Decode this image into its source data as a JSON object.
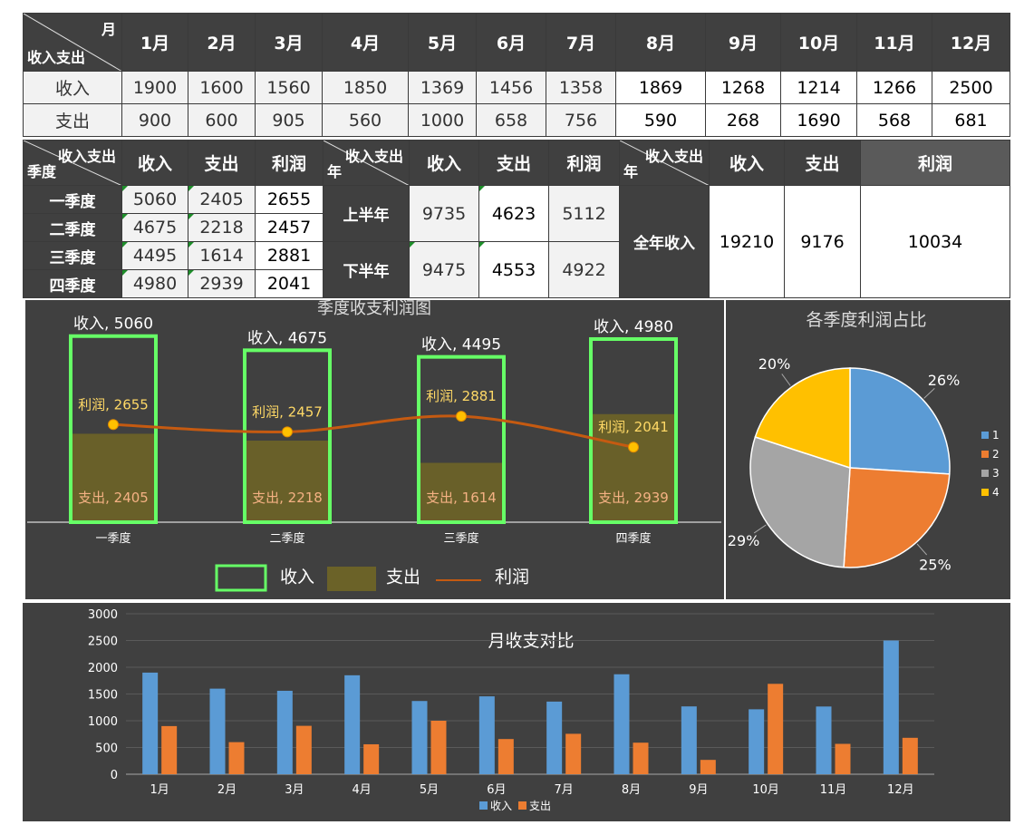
{
  "monthly_table": {
    "corner_top": "月",
    "corner_bottom": "收入支出",
    "months": [
      "1月",
      "2月",
      "3月",
      "4月",
      "5月",
      "6月",
      "7月",
      "8月",
      "9月",
      "10月",
      "11月",
      "12月"
    ],
    "rows": [
      {
        "label": "收入",
        "values": [
          "1900",
          "1600",
          "1560",
          "1850",
          "1369",
          "1456",
          "1358",
          "1869",
          "1268",
          "1214",
          "1266",
          "2500"
        ]
      },
      {
        "label": "支出",
        "values": [
          "900",
          "600",
          "905",
          "560",
          "1000",
          "658",
          "756",
          "590",
          "268",
          "1690",
          "568",
          "681"
        ]
      }
    ]
  },
  "quarter_table": {
    "corner_top": "收入支出",
    "corner_bottom": "季度",
    "headers": [
      "收入",
      "支出",
      "利润"
    ],
    "rows": [
      {
        "label": "一季度",
        "values": [
          "5060",
          "2405",
          "2655"
        ]
      },
      {
        "label": "二季度",
        "values": [
          "4675",
          "2218",
          "2457"
        ]
      },
      {
        "label": "三季度",
        "values": [
          "4495",
          "1614",
          "2881"
        ]
      },
      {
        "label": "四季度",
        "values": [
          "4980",
          "2939",
          "2041"
        ]
      }
    ]
  },
  "half_table": {
    "corner_top": "收入支出",
    "corner_bottom": "年",
    "headers": [
      "收入",
      "支出",
      "利润"
    ],
    "rows": [
      {
        "label": "上半年",
        "values": [
          "9735",
          "4623",
          "5112"
        ]
      },
      {
        "label": "下半年",
        "values": [
          "9475",
          "4553",
          "4922"
        ]
      }
    ]
  },
  "year_table": {
    "corner_top": "收入支出",
    "corner_bottom": "年",
    "headers": [
      "收入",
      "支出",
      "利润"
    ],
    "row_label": "全年收入",
    "values": [
      "19210",
      "9176",
      "10034"
    ]
  },
  "chart_data": [
    {
      "type": "bar",
      "title": "季度收支利润图",
      "categories": [
        "一季度",
        "二季度",
        "三季度",
        "四季度"
      ],
      "series": [
        {
          "name": "收入",
          "values": [
            5060,
            4675,
            4495,
            4980
          ]
        },
        {
          "name": "支出",
          "values": [
            2405,
            2218,
            1614,
            2939
          ]
        },
        {
          "name": "利润",
          "values": [
            2655,
            2457,
            2881,
            2041
          ]
        }
      ],
      "data_labels": {
        "收入": [
          "收入, 5060",
          "收入, 4675",
          "收入, 4495",
          "收入, 4980"
        ],
        "支出": [
          "支出, 2405",
          "支出, 2218",
          "支出, 1614",
          "支出, 2939"
        ],
        "利润": [
          "利润, 2655",
          "利润, 2457",
          "利润, 2881",
          "利润, 2041"
        ]
      },
      "ylim": [
        0,
        5300
      ],
      "legend": "bottom",
      "colors": {
        "收入": "#66ff66",
        "支出": "#6b6228",
        "利润": "#c55a11",
        "利润点": "#ffc000"
      }
    },
    {
      "type": "pie",
      "title": "各季度利润占比",
      "categories": [
        "1",
        "2",
        "3",
        "4"
      ],
      "values": [
        26,
        25,
        29,
        20
      ],
      "labels": [
        "26%",
        "25%",
        "29%",
        "20%"
      ],
      "colors": [
        "#5b9bd5",
        "#ed7d31",
        "#a5a5a5",
        "#ffc000"
      ],
      "legend": "right"
    },
    {
      "type": "bar",
      "title": "月收支对比",
      "categories": [
        "1月",
        "2月",
        "3月",
        "4月",
        "5月",
        "6月",
        "7月",
        "8月",
        "9月",
        "10月",
        "11月",
        "12月"
      ],
      "series": [
        {
          "name": "收入",
          "values": [
            1900,
            1600,
            1560,
            1850,
            1369,
            1456,
            1358,
            1869,
            1268,
            1214,
            1266,
            2500
          ]
        },
        {
          "name": "支出",
          "values": [
            900,
            600,
            905,
            560,
            1000,
            658,
            756,
            590,
            268,
            1690,
            568,
            681
          ]
        }
      ],
      "yticks": [
        "0",
        "500",
        "1000",
        "1500",
        "2000",
        "2500",
        "3000"
      ],
      "ylim": [
        0,
        3000
      ],
      "grid": true,
      "legend": "bottom",
      "colors": {
        "收入": "#5b9bd5",
        "支出": "#ed7d31"
      }
    }
  ]
}
